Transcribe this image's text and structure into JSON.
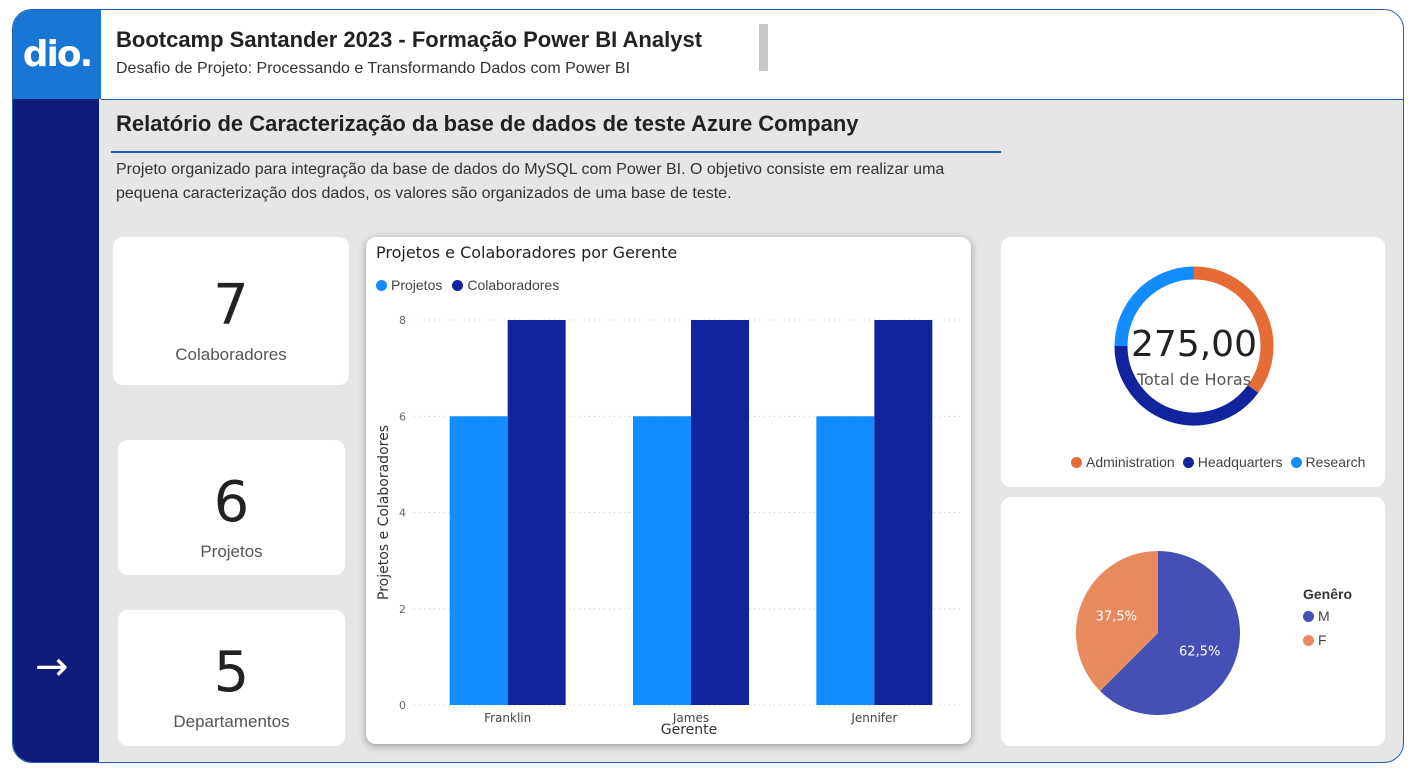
{
  "logo": {
    "text": "dio."
  },
  "header": {
    "title": "Bootcamp Santander 2023 - Formação Power BI Analyst",
    "subtitle": "Desafio de Projeto: Processando e Transformando Dados com Power BI"
  },
  "report": {
    "title": "Relatório de Caracterização da base de dados de teste Azure Company",
    "description": "Projeto organizado para integração da base de dados do MySQL com Power BI. O objetivo consiste em realizar uma pequena caracterização dos dados, os valores são organizados de uma base de teste."
  },
  "kpis": [
    {
      "value": "7",
      "label": "Colaboradores"
    },
    {
      "value": "6",
      "label": "Projetos"
    },
    {
      "value": "5",
      "label": "Departamentos"
    }
  ],
  "sidebar": {
    "arrow_icon": "arrow-right-icon",
    "arrow_glyph": "→"
  },
  "colors": {
    "brand_blue": "#1877d4",
    "sidebar_navy": "#0f1b78",
    "projetos": "#118dff",
    "colaboradores": "#12239e",
    "administration": "#e66c37",
    "headquarters": "#12239e",
    "research": "#118dff",
    "gender_m": "#4450b5",
    "gender_f": "#e88a5e"
  },
  "chart_data": [
    {
      "type": "bar",
      "title": "Projetos e Colaboradores por Gerente",
      "categories": [
        "Franklin",
        "James",
        "Jennifer"
      ],
      "series": [
        {
          "name": "Projetos",
          "values": [
            6,
            6,
            6
          ]
        },
        {
          "name": "Colaboradores",
          "values": [
            8,
            8,
            8
          ]
        }
      ],
      "xlabel": "Gerente",
      "ylabel": "Projetos e Colaboradores",
      "ylim": [
        0,
        8
      ],
      "yticks": [
        "0",
        "2",
        "4",
        "6",
        "8"
      ],
      "grid": true,
      "legend": "top-left"
    },
    {
      "type": "pie",
      "donut": true,
      "center_value": "275,00",
      "center_label": "Total de Horas",
      "legend": [
        "Administration",
        "Headquarters",
        "Research"
      ],
      "legend_position": "bottom"
    },
    {
      "type": "pie",
      "legend_title": "Genêro",
      "slices": [
        {
          "name": "M",
          "value": 62.5,
          "label": "62,5%"
        },
        {
          "name": "F",
          "value": 37.5,
          "label": "37,5%"
        }
      ],
      "legend_position": "right"
    }
  ]
}
